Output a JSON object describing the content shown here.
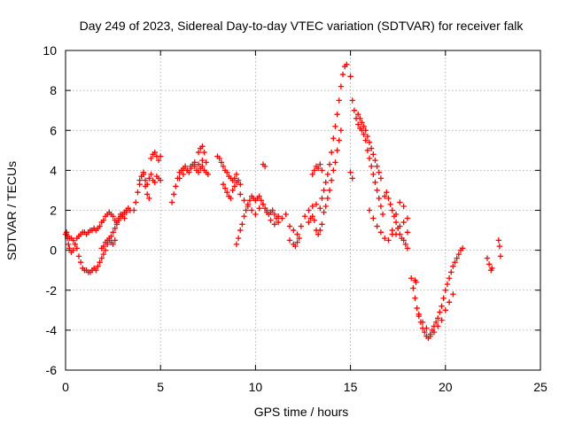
{
  "chart_data": {
    "type": "scatter",
    "title": "Day 249 of 2023, Sidereal Day-to-day VTEC variation (SDTVAR) for receiver falk",
    "xlabel": "GPS time / hours",
    "ylabel": "SDTVAR / TECUs",
    "xlim": [
      0,
      25
    ],
    "ylim": [
      -6,
      10
    ],
    "xticks": [
      0,
      5,
      10,
      15,
      20,
      25
    ],
    "yticks": [
      -6,
      -4,
      -2,
      0,
      2,
      4,
      6,
      8,
      10
    ],
    "grid": true,
    "marker": "plus",
    "color": "#ff0000",
    "series": [
      {
        "name": "SDTVAR",
        "x": [
          0.0,
          0.05,
          0.1,
          0.15,
          0.2,
          0.3,
          0.4,
          0.5,
          0.6,
          0.7,
          0.8,
          0.9,
          1.0,
          1.1,
          1.2,
          1.3,
          1.4,
          1.5,
          1.6,
          1.7,
          0.05,
          0.1,
          0.2,
          0.3,
          0.4,
          0.5,
          0.6,
          0.7,
          0.8,
          0.9,
          1.0,
          1.1,
          1.2,
          1.3,
          1.4,
          1.5,
          1.6,
          1.7,
          1.8,
          1.9,
          2.0,
          2.1,
          2.2,
          2.3,
          2.4,
          2.5,
          2.6,
          2.7,
          2.8,
          2.9,
          3.0,
          3.1,
          3.2,
          3.3,
          3.4,
          1.8,
          1.9,
          2.0,
          2.1,
          2.2,
          2.3,
          2.4,
          2.5,
          2.6,
          2.7,
          2.8,
          2.9,
          3.0,
          3.1,
          3.2,
          1.9,
          2.0,
          2.1,
          2.2,
          2.3,
          2.4,
          2.5,
          2.6,
          3.6,
          3.7,
          3.8,
          3.9,
          4.0,
          4.1,
          4.2,
          4.3,
          4.4,
          4.5,
          4.6,
          4.7,
          4.8,
          4.9,
          5.0,
          3.9,
          4.0,
          4.1,
          4.2,
          4.3,
          4.4,
          4.5,
          4.6,
          4.7,
          4.8,
          4.9,
          5.0,
          5.6,
          5.7,
          5.8,
          5.9,
          6.0,
          6.1,
          6.2,
          6.3,
          6.4,
          6.5,
          6.6,
          6.7,
          6.8,
          6.9,
          7.0,
          7.1,
          7.2,
          7.3,
          7.4,
          7.5,
          6.0,
          6.2,
          6.4,
          6.6,
          6.8,
          7.0,
          7.2,
          7.4,
          7.0,
          7.1,
          7.2,
          7.3,
          8.0,
          8.1,
          8.2,
          8.3,
          8.4,
          8.5,
          8.6,
          8.7,
          8.8,
          8.9,
          9.0,
          9.1,
          9.2,
          8.3,
          8.4,
          8.5,
          8.6,
          8.7,
          8.8,
          8.9,
          9.0,
          9.0,
          9.1,
          9.2,
          9.3,
          9.4,
          9.5,
          9.6,
          9.7,
          9.8,
          9.9,
          10.0,
          10.1,
          10.2,
          10.3,
          10.4,
          10.5,
          10.6,
          10.7,
          10.8,
          10.9,
          11.0,
          11.1,
          11.2,
          9.2,
          9.4,
          9.6,
          9.8,
          10.0,
          10.2,
          10.4,
          10.6,
          10.8,
          11.0,
          10.4,
          10.5,
          11.2,
          11.4,
          11.6,
          11.8,
          12.0,
          12.2,
          12.4,
          12.6,
          12.8,
          13.0,
          13.2,
          13.4,
          13.6,
          11.8,
          12.0,
          12.1,
          12.2,
          12.3,
          12.8,
          12.9,
          13.0,
          13.1,
          13.2,
          13.3,
          13.4,
          13.5,
          13.0,
          13.1,
          13.2,
          13.3,
          13.4,
          13.5,
          13.5,
          13.6,
          13.7,
          13.8,
          13.9,
          14.0,
          14.1,
          14.2,
          14.3,
          14.4,
          14.5,
          14.6,
          14.7,
          13.7,
          13.8,
          13.9,
          14.0,
          14.1,
          14.2,
          14.3,
          14.4,
          14.5,
          14.8,
          15.0,
          15.1,
          15.2,
          15.3,
          15.4,
          15.5,
          15.6,
          15.7,
          15.8,
          15.9,
          16.0,
          16.1,
          16.2,
          16.3,
          16.4,
          16.5,
          16.6,
          16.7,
          15.0,
          15.1,
          15.4,
          15.5,
          15.6,
          15.7,
          15.8,
          15.9,
          16.0,
          16.1,
          16.2,
          16.3,
          16.4,
          16.5,
          16.6,
          16.0,
          16.2,
          16.4,
          16.6,
          16.8,
          17.0,
          17.2,
          16.8,
          16.9,
          17.0,
          17.1,
          17.2,
          17.3,
          17.4,
          17.5,
          17.6,
          17.7,
          17.8,
          17.9,
          18.0,
          17.4,
          17.6,
          17.8,
          18.0,
          17.2,
          17.4,
          17.6,
          17.8,
          18.0,
          18.2,
          18.3,
          18.4,
          18.5,
          18.6,
          18.7,
          18.8,
          18.9,
          19.0,
          19.1,
          19.2,
          19.3,
          19.4,
          19.5,
          19.6,
          19.7,
          19.8,
          19.9,
          20.0,
          20.1,
          20.2,
          20.3,
          20.4,
          20.5,
          20.6,
          20.7,
          20.8,
          20.9,
          18.6,
          18.8,
          19.0,
          19.2,
          19.4,
          19.6,
          19.8,
          20.0,
          20.2,
          20.4,
          18.4,
          18.45,
          22.2,
          22.3,
          22.4,
          22.45,
          22.8,
          22.85,
          22.9
        ],
        "y": [
          0.8,
          0.9,
          0.6,
          0.3,
          0.1,
          -0.1,
          0.0,
          0.3,
          0.6,
          0.7,
          0.8,
          0.9,
          0.9,
          0.8,
          0.9,
          1.0,
          1.0,
          1.1,
          1.0,
          1.1,
          0.8,
          0.7,
          0.6,
          0.6,
          0.5,
          0.3,
          0.1,
          -0.3,
          -0.6,
          -0.9,
          -1.0,
          -1.0,
          -1.1,
          -1.1,
          -1.0,
          -0.9,
          -1.0,
          -0.8,
          -0.6,
          -0.4,
          -0.2,
          0.0,
          0.3,
          0.5,
          0.7,
          0.9,
          1.1,
          1.3,
          1.5,
          1.7,
          1.8,
          1.9,
          2.0,
          2.1,
          2.0,
          1.2,
          1.4,
          1.5,
          1.7,
          1.8,
          1.9,
          1.8,
          1.7,
          1.5,
          1.4,
          1.6,
          1.8,
          1.7,
          1.6,
          1.9,
          0.1,
          0.2,
          0.4,
          0.5,
          0.6,
          0.4,
          0.3,
          0.5,
          2.0,
          2.4,
          2.9,
          3.3,
          3.7,
          3.8,
          3.5,
          3.3,
          3.6,
          3.8,
          3.5,
          3.4,
          3.7,
          3.6,
          3.5,
          3.5,
          3.7,
          3.9,
          3.2,
          2.8,
          2.6,
          4.6,
          4.8,
          4.9,
          4.7,
          4.5,
          4.7,
          2.4,
          2.8,
          3.2,
          3.6,
          3.9,
          4.0,
          4.1,
          4.2,
          4.0,
          3.9,
          4.1,
          4.3,
          4.2,
          4.0,
          3.9,
          4.1,
          4.2,
          4.0,
          3.9,
          3.8,
          3.6,
          3.8,
          4.0,
          4.2,
          4.4,
          4.3,
          4.5,
          4.4,
          4.9,
          5.1,
          5.2,
          4.9,
          4.7,
          4.6,
          4.4,
          4.2,
          4.0,
          3.9,
          3.7,
          3.6,
          3.5,
          3.6,
          3.8,
          3.5,
          3.3,
          3.3,
          3.1,
          2.9,
          2.7,
          2.6,
          3.0,
          3.2,
          3.4,
          0.3,
          0.6,
          1.0,
          1.3,
          1.7,
          2.0,
          2.3,
          2.5,
          2.7,
          2.6,
          2.5,
          2.6,
          2.7,
          2.5,
          2.3,
          2.1,
          1.9,
          1.8,
          1.9,
          2.0,
          1.8,
          1.6,
          1.7,
          2.8,
          2.5,
          2.2,
          2.0,
          1.8,
          2.1,
          2.3,
          2.0,
          1.5,
          1.3,
          4.3,
          4.2,
          1.4,
          1.6,
          1.8,
          1.2,
          1.0,
          0.8,
          1.2,
          1.7,
          2.0,
          2.2,
          2.3,
          2.1,
          1.9,
          0.5,
          0.3,
          0.2,
          0.4,
          0.6,
          1.4,
          1.6,
          1.7,
          1.5,
          1.0,
          0.8,
          1.0,
          1.3,
          3.8,
          4.0,
          4.2,
          4.1,
          4.3,
          4.0,
          2.6,
          3.0,
          3.4,
          3.8,
          4.3,
          4.9,
          5.6,
          6.2,
          6.8,
          7.5,
          8.2,
          8.8,
          9.2,
          2.2,
          2.6,
          3.0,
          3.5,
          4.0,
          4.4,
          5.0,
          5.5,
          6.0,
          9.3,
          8.7,
          7.5,
          7.0,
          6.6,
          6.3,
          6.1,
          6.0,
          5.8,
          5.5,
          5.0,
          4.6,
          4.2,
          3.8,
          3.4,
          3.0,
          2.6,
          2.2,
          1.8,
          3.9,
          3.6,
          6.8,
          6.6,
          6.4,
          6.2,
          6.0,
          5.7,
          5.4,
          5.1,
          4.8,
          4.5,
          4.2,
          3.9,
          3.6,
          2.0,
          1.6,
          1.2,
          0.9,
          0.6,
          0.5,
          0.8,
          2.7,
          2.9,
          2.6,
          2.3,
          2.0,
          1.7,
          1.4,
          1.1,
          0.8,
          0.6,
          0.5,
          0.3,
          0.1,
          1.8,
          2.4,
          2.2,
          1.6,
          1.0,
          0.8,
          1.2,
          1.4,
          0.9,
          -1.4,
          -1.9,
          -2.4,
          -2.9,
          -3.3,
          -3.6,
          -3.9,
          -4.1,
          -4.3,
          -4.4,
          -4.3,
          -4.0,
          -3.8,
          -3.6,
          -3.4,
          -3.1,
          -2.8,
          -2.4,
          -2.0,
          -1.7,
          -1.4,
          -1.1,
          -0.8,
          -0.6,
          -0.4,
          -0.2,
          0.0,
          0.1,
          -3.2,
          -3.6,
          -3.9,
          -4.2,
          -4.1,
          -3.8,
          -3.5,
          -3.0,
          -2.6,
          -2.2,
          -1.5,
          -1.6,
          -0.4,
          -0.7,
          -1.0,
          -0.9,
          0.5,
          0.2,
          -0.3
        ]
      }
    ]
  }
}
